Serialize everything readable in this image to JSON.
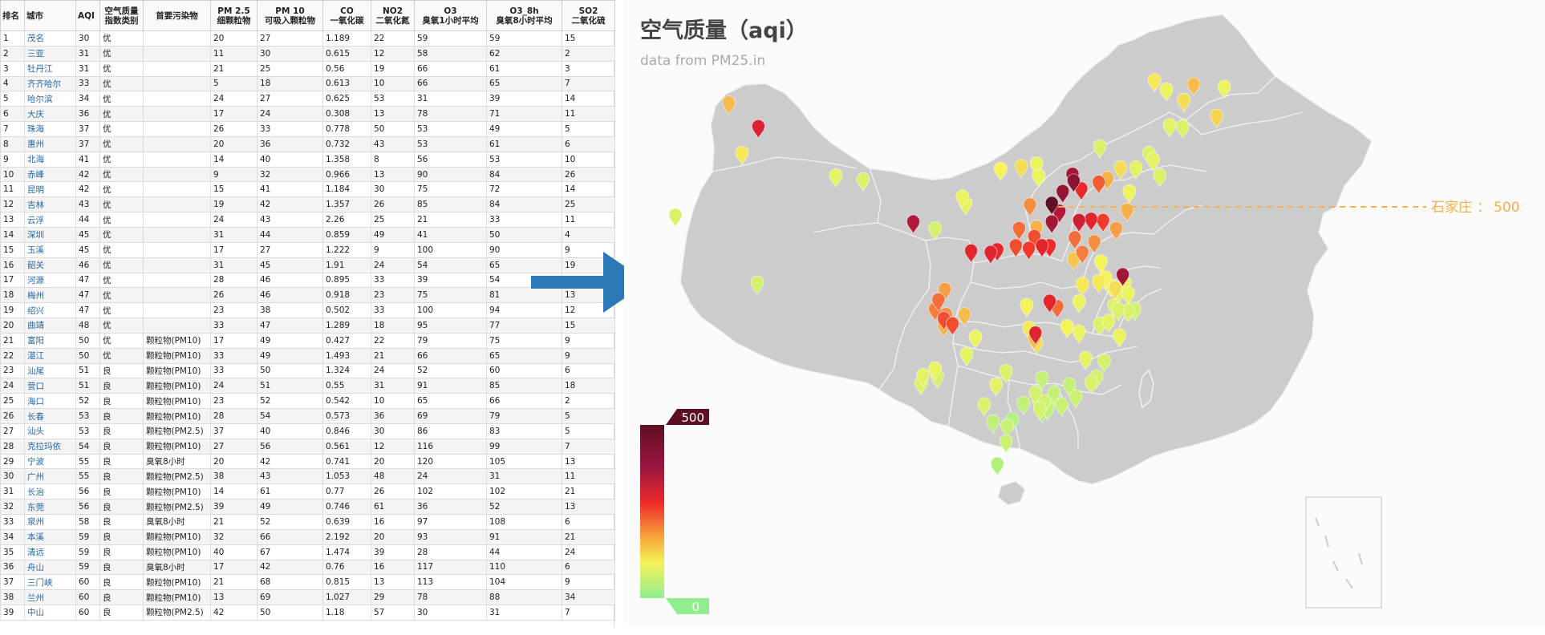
{
  "table": {
    "headers": [
      [
        "排名"
      ],
      [
        "城市"
      ],
      [
        "AQI"
      ],
      [
        "空气质量",
        "指数类别"
      ],
      [
        "首要污染物"
      ],
      [
        "PM 2.5",
        "细颗粒物"
      ],
      [
        "PM 10",
        "可吸入颗粒物"
      ],
      [
        "CO",
        "一氧化碳"
      ],
      [
        "NO2",
        "二氧化氮"
      ],
      [
        "O3",
        "臭氧1小时平均"
      ],
      [
        "O3_8h",
        "臭氧8小时平均"
      ],
      [
        "SO2",
        "二氧化硫"
      ]
    ],
    "rows": [
      [
        "1",
        "茂名",
        "30",
        "优",
        "",
        "20",
        "27",
        "1.189",
        "22",
        "59",
        "59",
        "15"
      ],
      [
        "2",
        "三亚",
        "31",
        "优",
        "",
        "11",
        "30",
        "0.615",
        "12",
        "58",
        "62",
        "2"
      ],
      [
        "3",
        "牡丹江",
        "31",
        "优",
        "",
        "21",
        "25",
        "0.56",
        "19",
        "66",
        "61",
        "3"
      ],
      [
        "4",
        "齐齐哈尔",
        "33",
        "优",
        "",
        "5",
        "18",
        "0.613",
        "10",
        "66",
        "65",
        "7"
      ],
      [
        "5",
        "哈尔滨",
        "34",
        "优",
        "",
        "24",
        "27",
        "0.625",
        "53",
        "31",
        "39",
        "14"
      ],
      [
        "6",
        "大庆",
        "36",
        "优",
        "",
        "17",
        "24",
        "0.308",
        "13",
        "78",
        "71",
        "11"
      ],
      [
        "7",
        "珠海",
        "37",
        "优",
        "",
        "26",
        "33",
        "0.778",
        "50",
        "53",
        "49",
        "5"
      ],
      [
        "8",
        "惠州",
        "37",
        "优",
        "",
        "20",
        "36",
        "0.732",
        "43",
        "53",
        "61",
        "6"
      ],
      [
        "9",
        "北海",
        "41",
        "优",
        "",
        "14",
        "40",
        "1.358",
        "8",
        "56",
        "53",
        "10"
      ],
      [
        "10",
        "赤峰",
        "42",
        "优",
        "",
        "9",
        "32",
        "0.966",
        "13",
        "90",
        "84",
        "26"
      ],
      [
        "11",
        "昆明",
        "42",
        "优",
        "",
        "15",
        "41",
        "1.184",
        "30",
        "75",
        "72",
        "14"
      ],
      [
        "12",
        "吉林",
        "43",
        "优",
        "",
        "19",
        "42",
        "1.357",
        "26",
        "85",
        "84",
        "25"
      ],
      [
        "13",
        "云浮",
        "44",
        "优",
        "",
        "24",
        "43",
        "2.26",
        "25",
        "21",
        "33",
        "11"
      ],
      [
        "14",
        "深圳",
        "45",
        "优",
        "",
        "31",
        "44",
        "0.859",
        "49",
        "41",
        "50",
        "4"
      ],
      [
        "15",
        "玉溪",
        "45",
        "优",
        "",
        "17",
        "27",
        "1.222",
        "9",
        "100",
        "90",
        "9"
      ],
      [
        "16",
        "韶关",
        "46",
        "优",
        "",
        "31",
        "45",
        "1.91",
        "24",
        "54",
        "65",
        "19"
      ],
      [
        "17",
        "河源",
        "47",
        "优",
        "",
        "28",
        "46",
        "0.895",
        "33",
        "39",
        "54",
        ""
      ],
      [
        "18",
        "梅州",
        "47",
        "优",
        "",
        "26",
        "46",
        "0.918",
        "23",
        "75",
        "81",
        "13"
      ],
      [
        "19",
        "绍兴",
        "47",
        "优",
        "",
        "23",
        "38",
        "0.502",
        "33",
        "100",
        "94",
        "12"
      ],
      [
        "20",
        "曲靖",
        "48",
        "优",
        "",
        "33",
        "47",
        "1.289",
        "18",
        "95",
        "77",
        "15"
      ],
      [
        "21",
        "富阳",
        "50",
        "优",
        "颗粒物(PM10)",
        "17",
        "49",
        "0.427",
        "22",
        "79",
        "75",
        "9"
      ],
      [
        "22",
        "湛江",
        "50",
        "优",
        "颗粒物(PM10)",
        "33",
        "49",
        "1.493",
        "21",
        "66",
        "65",
        "9"
      ],
      [
        "23",
        "汕尾",
        "51",
        "良",
        "颗粒物(PM10)",
        "33",
        "50",
        "1.324",
        "24",
        "52",
        "60",
        "6"
      ],
      [
        "24",
        "营口",
        "51",
        "良",
        "颗粒物(PM10)",
        "24",
        "51",
        "0.55",
        "31",
        "91",
        "85",
        "18"
      ],
      [
        "25",
        "海口",
        "52",
        "良",
        "颗粒物(PM10)",
        "23",
        "52",
        "0.542",
        "10",
        "65",
        "66",
        "2"
      ],
      [
        "26",
        "长春",
        "53",
        "良",
        "颗粒物(PM10)",
        "28",
        "54",
        "0.573",
        "36",
        "69",
        "79",
        "5"
      ],
      [
        "27",
        "汕头",
        "53",
        "良",
        "颗粒物(PM2.5)",
        "37",
        "40",
        "0.846",
        "30",
        "86",
        "83",
        "5"
      ],
      [
        "28",
        "克拉玛依",
        "54",
        "良",
        "颗粒物(PM10)",
        "27",
        "56",
        "0.561",
        "12",
        "116",
        "99",
        "7"
      ],
      [
        "29",
        "宁波",
        "55",
        "良",
        "臭氧8小时",
        "20",
        "42",
        "0.741",
        "20",
        "120",
        "105",
        "13"
      ],
      [
        "30",
        "广州",
        "55",
        "良",
        "颗粒物(PM2.5)",
        "38",
        "43",
        "1.053",
        "48",
        "24",
        "31",
        "11"
      ],
      [
        "31",
        "长治",
        "56",
        "良",
        "颗粒物(PM10)",
        "14",
        "61",
        "0.77",
        "26",
        "102",
        "102",
        "21"
      ],
      [
        "32",
        "东莞",
        "56",
        "良",
        "颗粒物(PM2.5)",
        "39",
        "49",
        "0.746",
        "61",
        "36",
        "52",
        "13"
      ],
      [
        "33",
        "泉州",
        "58",
        "良",
        "臭氧8小时",
        "21",
        "52",
        "0.639",
        "16",
        "97",
        "108",
        "6"
      ],
      [
        "34",
        "本溪",
        "59",
        "良",
        "颗粒物(PM10)",
        "32",
        "66",
        "2.192",
        "20",
        "93",
        "91",
        "21"
      ],
      [
        "35",
        "清远",
        "59",
        "良",
        "颗粒物(PM10)",
        "40",
        "67",
        "1.474",
        "39",
        "28",
        "44",
        "24"
      ],
      [
        "36",
        "舟山",
        "59",
        "良",
        "臭氧8小时",
        "17",
        "42",
        "0.76",
        "16",
        "117",
        "110",
        "6"
      ],
      [
        "37",
        "三门峡",
        "60",
        "良",
        "颗粒物(PM10)",
        "21",
        "68",
        "0.815",
        "13",
        "113",
        "104",
        "9"
      ],
      [
        "38",
        "兰州",
        "60",
        "良",
        "颗粒物(PM10)",
        "13",
        "69",
        "1.027",
        "29",
        "78",
        "88",
        "34"
      ],
      [
        "39",
        "中山",
        "60",
        "良",
        "颗粒物(PM2.5)",
        "42",
        "50",
        "1.18",
        "57",
        "30",
        "31",
        "7"
      ]
    ]
  },
  "map": {
    "title": "空气质量（aqi）",
    "subtitle": "data from PM25.in",
    "legend": {
      "max_label": "500",
      "min_label": "0"
    },
    "callout": {
      "city": "石家庄",
      "separator": "：",
      "value": "500"
    },
    "colors": {
      "land": "#cccccc",
      "border": "#f2f2f2",
      "arrow": "#2a78b4",
      "callout": "#f6b04a",
      "legend_top": "#5e0f22",
      "legend_bottom": "#90ee90"
    }
  },
  "chart_data": {
    "type": "map-scatter",
    "title": "空气质量（aqi）",
    "subtitle": "data from PM25.in",
    "visual_range": [
      0,
      500
    ],
    "highlight": {
      "city": "石家庄",
      "value": 500
    },
    "markers": [
      {
        "lon": 84.9,
        "lat": 45.6,
        "aqi": 150
      },
      {
        "lon": 87.6,
        "lat": 43.8,
        "aqi": 280
      },
      {
        "lon": 86.1,
        "lat": 41.8,
        "aqi": 110
      },
      {
        "lon": 80.0,
        "lat": 37.1,
        "aqi": 70
      },
      {
        "lon": 94.7,
        "lat": 40.1,
        "aqi": 80
      },
      {
        "lon": 97.2,
        "lat": 39.8,
        "aqi": 70
      },
      {
        "lon": 101.8,
        "lat": 36.6,
        "aqi": 350
      },
      {
        "lon": 103.8,
        "lat": 36.1,
        "aqi": 60
      },
      {
        "lon": 106.3,
        "lat": 38.5,
        "aqi": 90
      },
      {
        "lon": 106.6,
        "lat": 38.0,
        "aqi": 80
      },
      {
        "lon": 109.8,
        "lat": 40.6,
        "aqi": 100
      },
      {
        "lon": 111.7,
        "lat": 40.8,
        "aqi": 120
      },
      {
        "lon": 113.1,
        "lat": 41.0,
        "aqi": 90
      },
      {
        "lon": 118.9,
        "lat": 42.3,
        "aqi": 70
      },
      {
        "lon": 116.4,
        "lat": 40.2,
        "aqi": 380
      },
      {
        "lon": 116.5,
        "lat": 39.7,
        "aqi": 420
      },
      {
        "lon": 117.2,
        "lat": 39.1,
        "aqi": 250
      },
      {
        "lon": 115.5,
        "lat": 38.9,
        "aqi": 400
      },
      {
        "lon": 114.5,
        "lat": 38.0,
        "aqi": 500
      },
      {
        "lon": 115.2,
        "lat": 37.4,
        "aqi": 350
      },
      {
        "lon": 114.5,
        "lat": 36.6,
        "aqi": 380
      },
      {
        "lon": 113.3,
        "lat": 40.1,
        "aqi": 90
      },
      {
        "lon": 112.5,
        "lat": 37.9,
        "aqi": 180
      },
      {
        "lon": 111.5,
        "lat": 36.1,
        "aqi": 200
      },
      {
        "lon": 112.9,
        "lat": 35.5,
        "aqi": 220
      },
      {
        "lon": 113.1,
        "lat": 36.2,
        "aqi": 160
      },
      {
        "lon": 113.6,
        "lat": 34.8,
        "aqi": 260
      },
      {
        "lon": 114.3,
        "lat": 34.8,
        "aqi": 240
      },
      {
        "lon": 112.4,
        "lat": 34.6,
        "aqi": 230
      },
      {
        "lon": 111.2,
        "lat": 34.8,
        "aqi": 220
      },
      {
        "lon": 108.9,
        "lat": 34.3,
        "aqi": 270
      },
      {
        "lon": 107.1,
        "lat": 34.4,
        "aqi": 260
      },
      {
        "lon": 109.5,
        "lat": 34.5,
        "aqi": 250
      },
      {
        "lon": 117.0,
        "lat": 36.7,
        "aqi": 300
      },
      {
        "lon": 118.1,
        "lat": 36.8,
        "aqi": 260
      },
      {
        "lon": 119.2,
        "lat": 36.7,
        "aqi": 230
      },
      {
        "lon": 120.4,
        "lat": 36.1,
        "aqi": 170
      },
      {
        "lon": 121.4,
        "lat": 37.5,
        "aqi": 160
      },
      {
        "lon": 118.4,
        "lat": 35.1,
        "aqi": 180
      },
      {
        "lon": 116.6,
        "lat": 35.4,
        "aqi": 200
      },
      {
        "lon": 117.3,
        "lat": 34.3,
        "aqi": 190
      },
      {
        "lon": 118.8,
        "lat": 39.6,
        "aqi": 210
      },
      {
        "lon": 119.6,
        "lat": 39.9,
        "aqi": 160
      },
      {
        "lon": 120.8,
        "lat": 40.7,
        "aqi": 120
      },
      {
        "lon": 121.6,
        "lat": 38.9,
        "aqi": 90
      },
      {
        "lon": 122.2,
        "lat": 40.7,
        "aqi": 80
      },
      {
        "lon": 123.4,
        "lat": 41.8,
        "aqi": 70
      },
      {
        "lon": 123.8,
        "lat": 41.3,
        "aqi": 80
      },
      {
        "lon": 124.4,
        "lat": 40.1,
        "aqi": 70
      },
      {
        "lon": 125.3,
        "lat": 43.9,
        "aqi": 80
      },
      {
        "lon": 126.5,
        "lat": 43.8,
        "aqi": 70
      },
      {
        "lon": 126.6,
        "lat": 45.8,
        "aqi": 120
      },
      {
        "lon": 123.9,
        "lat": 47.3,
        "aqi": 110
      },
      {
        "lon": 125.0,
        "lat": 46.6,
        "aqi": 90
      },
      {
        "lon": 129.6,
        "lat": 44.6,
        "aqi": 130
      },
      {
        "lon": 130.3,
        "lat": 46.8,
        "aqi": 90
      },
      {
        "lon": 127.5,
        "lat": 47.0,
        "aqi": 150
      },
      {
        "lon": 119.0,
        "lat": 33.6,
        "aqi": 100
      },
      {
        "lon": 118.8,
        "lat": 32.1,
        "aqi": 110
      },
      {
        "lon": 120.3,
        "lat": 31.6,
        "aqi": 120
      },
      {
        "lon": 121.5,
        "lat": 31.2,
        "aqi": 90
      },
      {
        "lon": 120.6,
        "lat": 31.3,
        "aqi": 80
      },
      {
        "lon": 119.9,
        "lat": 31.8,
        "aqi": 100
      },
      {
        "lon": 117.3,
        "lat": 31.9,
        "aqi": 110
      },
      {
        "lon": 116.5,
        "lat": 33.8,
        "aqi": 140
      },
      {
        "lon": 117.0,
        "lat": 30.6,
        "aqi": 90
      },
      {
        "lon": 120.2,
        "lat": 30.3,
        "aqi": 70
      },
      {
        "lon": 121.5,
        "lat": 29.9,
        "aqi": 70
      },
      {
        "lon": 122.1,
        "lat": 30.0,
        "aqi": 60
      },
      {
        "lon": 120.6,
        "lat": 30.0,
        "aqi": 70
      },
      {
        "lon": 119.7,
        "lat": 29.1,
        "aqi": 80
      },
      {
        "lon": 120.7,
        "lat": 28.0,
        "aqi": 90
      },
      {
        "lon": 118.9,
        "lat": 28.9,
        "aqi": 70
      },
      {
        "lon": 121.2,
        "lat": 32.0,
        "aqi": 80
      },
      {
        "lon": 121.0,
        "lat": 32.6,
        "aqi": 380
      },
      {
        "lon": 119.4,
        "lat": 32.4,
        "aqi": 100
      },
      {
        "lon": 114.3,
        "lat": 30.6,
        "aqi": 260
      },
      {
        "lon": 115.0,
        "lat": 30.2,
        "aqi": 200
      },
      {
        "lon": 112.2,
        "lat": 30.3,
        "aqi": 100
      },
      {
        "lon": 113.0,
        "lat": 28.2,
        "aqi": 270
      },
      {
        "lon": 112.4,
        "lat": 28.6,
        "aqi": 110
      },
      {
        "lon": 112.9,
        "lat": 27.8,
        "aqi": 150
      },
      {
        "lon": 113.1,
        "lat": 27.5,
        "aqi": 120
      },
      {
        "lon": 115.9,
        "lat": 28.7,
        "aqi": 100
      },
      {
        "lon": 117.0,
        "lat": 28.3,
        "aqi": 90
      },
      {
        "lon": 104.1,
        "lat": 30.7,
        "aqi": 200
      },
      {
        "lon": 104.7,
        "lat": 31.5,
        "aqi": 170
      },
      {
        "lon": 103.8,
        "lat": 30.0,
        "aqi": 190
      },
      {
        "lon": 104.6,
        "lat": 29.3,
        "aqi": 220
      },
      {
        "lon": 104.8,
        "lat": 29.6,
        "aqi": 180
      },
      {
        "lon": 105.4,
        "lat": 28.9,
        "aqi": 220
      },
      {
        "lon": 106.5,
        "lat": 29.6,
        "aqi": 150
      },
      {
        "lon": 104.6,
        "lat": 28.8,
        "aqi": 160
      },
      {
        "lon": 106.7,
        "lat": 26.6,
        "aqi": 80
      },
      {
        "lon": 107.5,
        "lat": 27.9,
        "aqi": 90
      },
      {
        "lon": 102.7,
        "lat": 25.0,
        "aqi": 80
      },
      {
        "lon": 103.8,
        "lat": 25.5,
        "aqi": 90
      },
      {
        "lon": 102.5,
        "lat": 24.4,
        "aqi": 70
      },
      {
        "lon": 104.0,
        "lat": 24.9,
        "aqi": 60
      },
      {
        "lon": 108.3,
        "lat": 22.8,
        "aqi": 70
      },
      {
        "lon": 109.4,
        "lat": 24.3,
        "aqi": 80
      },
      {
        "lon": 110.3,
        "lat": 25.3,
        "aqi": 70
      },
      {
        "lon": 109.1,
        "lat": 21.5,
        "aqi": 41
      },
      {
        "lon": 110.4,
        "lat": 21.2,
        "aqi": 50
      },
      {
        "lon": 110.9,
        "lat": 21.7,
        "aqi": 30
      },
      {
        "lon": 111.9,
        "lat": 22.9,
        "aqi": 44
      },
      {
        "lon": 113.3,
        "lat": 23.1,
        "aqi": 55
      },
      {
        "lon": 113.8,
        "lat": 23.0,
        "aqi": 56
      },
      {
        "lon": 114.1,
        "lat": 22.5,
        "aqi": 45
      },
      {
        "lon": 113.4,
        "lat": 22.5,
        "aqi": 60
      },
      {
        "lon": 113.6,
        "lat": 22.3,
        "aqi": 37
      },
      {
        "lon": 114.4,
        "lat": 23.1,
        "aqi": 37
      },
      {
        "lon": 113.6,
        "lat": 24.8,
        "aqi": 46
      },
      {
        "lon": 114.7,
        "lat": 23.7,
        "aqi": 47
      },
      {
        "lon": 116.1,
        "lat": 24.3,
        "aqi": 47
      },
      {
        "lon": 116.7,
        "lat": 23.4,
        "aqi": 53
      },
      {
        "lon": 115.4,
        "lat": 22.8,
        "aqi": 51
      },
      {
        "lon": 113.0,
        "lat": 23.7,
        "aqi": 59
      },
      {
        "lon": 118.1,
        "lat": 24.5,
        "aqi": 70
      },
      {
        "lon": 118.6,
        "lat": 24.9,
        "aqi": 58
      },
      {
        "lon": 119.3,
        "lat": 26.1,
        "aqi": 60
      },
      {
        "lon": 117.6,
        "lat": 26.3,
        "aqi": 80
      },
      {
        "lon": 110.3,
        "lat": 20.0,
        "aqi": 52
      },
      {
        "lon": 109.5,
        "lat": 18.3,
        "aqi": 31
      },
      {
        "lon": 87.5,
        "lat": 32.0,
        "aqi": 60
      }
    ]
  }
}
